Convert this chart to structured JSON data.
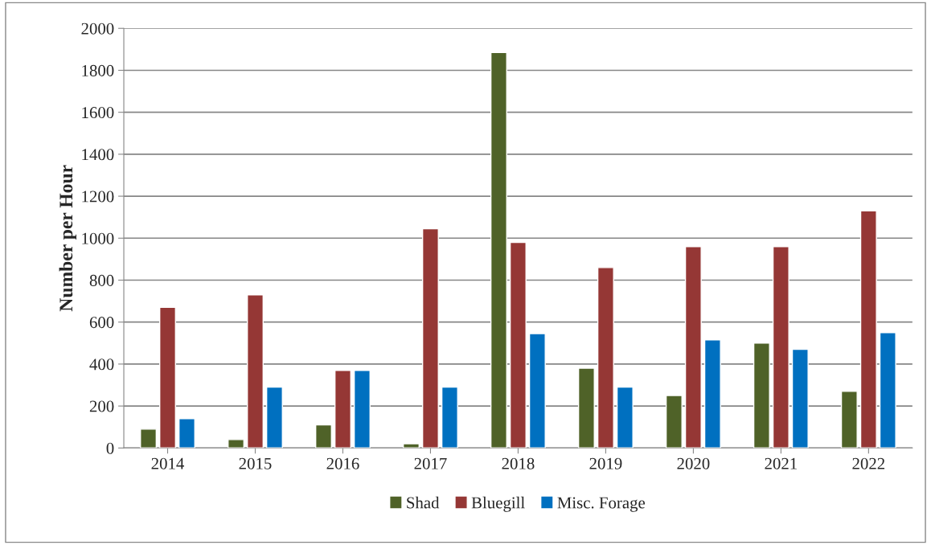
{
  "chart_data": {
    "type": "bar",
    "ylabel": "Number per Hour",
    "categories": [
      "2014",
      "2015",
      "2016",
      "2017",
      "2018",
      "2019",
      "2020",
      "2021",
      "2022"
    ],
    "series": [
      {
        "name": "Shad",
        "color": "#4f6228",
        "values": [
          90,
          40,
          110,
          20,
          1885,
          380,
          250,
          500,
          270
        ]
      },
      {
        "name": "Bluegill",
        "color": "#953735",
        "values": [
          670,
          730,
          370,
          1045,
          980,
          860,
          960,
          960,
          1130
        ]
      },
      {
        "name": "Misc. Forage",
        "color": "#0070c0",
        "values": [
          140,
          290,
          370,
          290,
          545,
          290,
          515,
          470,
          550
        ]
      }
    ],
    "ylim": [
      0,
      2000
    ],
    "yticks": [
      0,
      200,
      400,
      600,
      800,
      1000,
      1200,
      1400,
      1600,
      1800,
      2000
    ],
    "grid": "y",
    "legend": "bottom"
  }
}
